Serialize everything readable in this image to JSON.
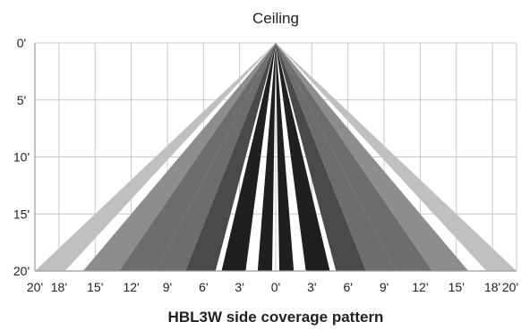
{
  "header": {
    "top_label": "Ceiling"
  },
  "caption": "HBL3W side coverage pattern",
  "axes": {
    "y_ticks": [
      "0'",
      "5'",
      "10'",
      "15'",
      "20'"
    ],
    "x_ticks": [
      "20'",
      "18'",
      "15'",
      "12'",
      "9'",
      "6'",
      "3'",
      "0'",
      "3'",
      "6'",
      "9'",
      "12'",
      "15'",
      "18'",
      "20'"
    ]
  },
  "colors": {
    "grid": "#c9c9c9",
    "axis": "#9a9a9a",
    "beam_outer": "#c0c0c0",
    "beam_mid_outer": "#8d8d8d",
    "beam_mid": "#6d6d6d",
    "beam_mid_inner": "#4a4a4a",
    "beam_inner": "#1f1f1f"
  },
  "chart_data": {
    "type": "diagram",
    "title": "HBL3W side coverage pattern",
    "top_label": "Ceiling",
    "y_range_ft": [
      0,
      20
    ],
    "x_range_ft": [
      -20,
      20
    ],
    "y_ticks_ft": [
      0,
      5,
      10,
      15,
      20
    ],
    "x_ticks_ft": [
      -20,
      -18,
      -15,
      -12,
      -9,
      -6,
      -3,
      0,
      3,
      6,
      9,
      12,
      15,
      18,
      20
    ],
    "apex_ft": [
      0,
      0
    ],
    "beams": [
      {
        "side": "left",
        "floor_ft": [
          -20,
          -17.5
        ],
        "shade": "beam_outer"
      },
      {
        "side": "left",
        "floor_ft": [
          -16,
          -13
        ],
        "shade": "beam_mid_outer"
      },
      {
        "side": "left",
        "floor_ft": [
          -13,
          -10
        ],
        "shade": "beam_mid"
      },
      {
        "side": "left",
        "floor_ft": [
          -10,
          -7.5
        ],
        "shade": "beam_mid"
      },
      {
        "side": "left",
        "floor_ft": [
          -7.5,
          -5
        ],
        "shade": "beam_mid_inner"
      },
      {
        "side": "left",
        "floor_ft": [
          -4.5,
          -2.5
        ],
        "shade": "beam_inner"
      },
      {
        "side": "left",
        "floor_ft": [
          -1.5,
          -0.3
        ],
        "shade": "beam_inner"
      },
      {
        "side": "right",
        "floor_ft": [
          0.3,
          1.5
        ],
        "shade": "beam_inner"
      },
      {
        "side": "right",
        "floor_ft": [
          2.5,
          4.5
        ],
        "shade": "beam_inner"
      },
      {
        "side": "right",
        "floor_ft": [
          5,
          7.5
        ],
        "shade": "beam_mid_inner"
      },
      {
        "side": "right",
        "floor_ft": [
          7.5,
          10
        ],
        "shade": "beam_mid"
      },
      {
        "side": "right",
        "floor_ft": [
          10,
          13
        ],
        "shade": "beam_mid"
      },
      {
        "side": "right",
        "floor_ft": [
          13,
          16
        ],
        "shade": "beam_mid_outer"
      },
      {
        "side": "right",
        "floor_ft": [
          17.5,
          20
        ],
        "shade": "beam_outer"
      }
    ]
  }
}
